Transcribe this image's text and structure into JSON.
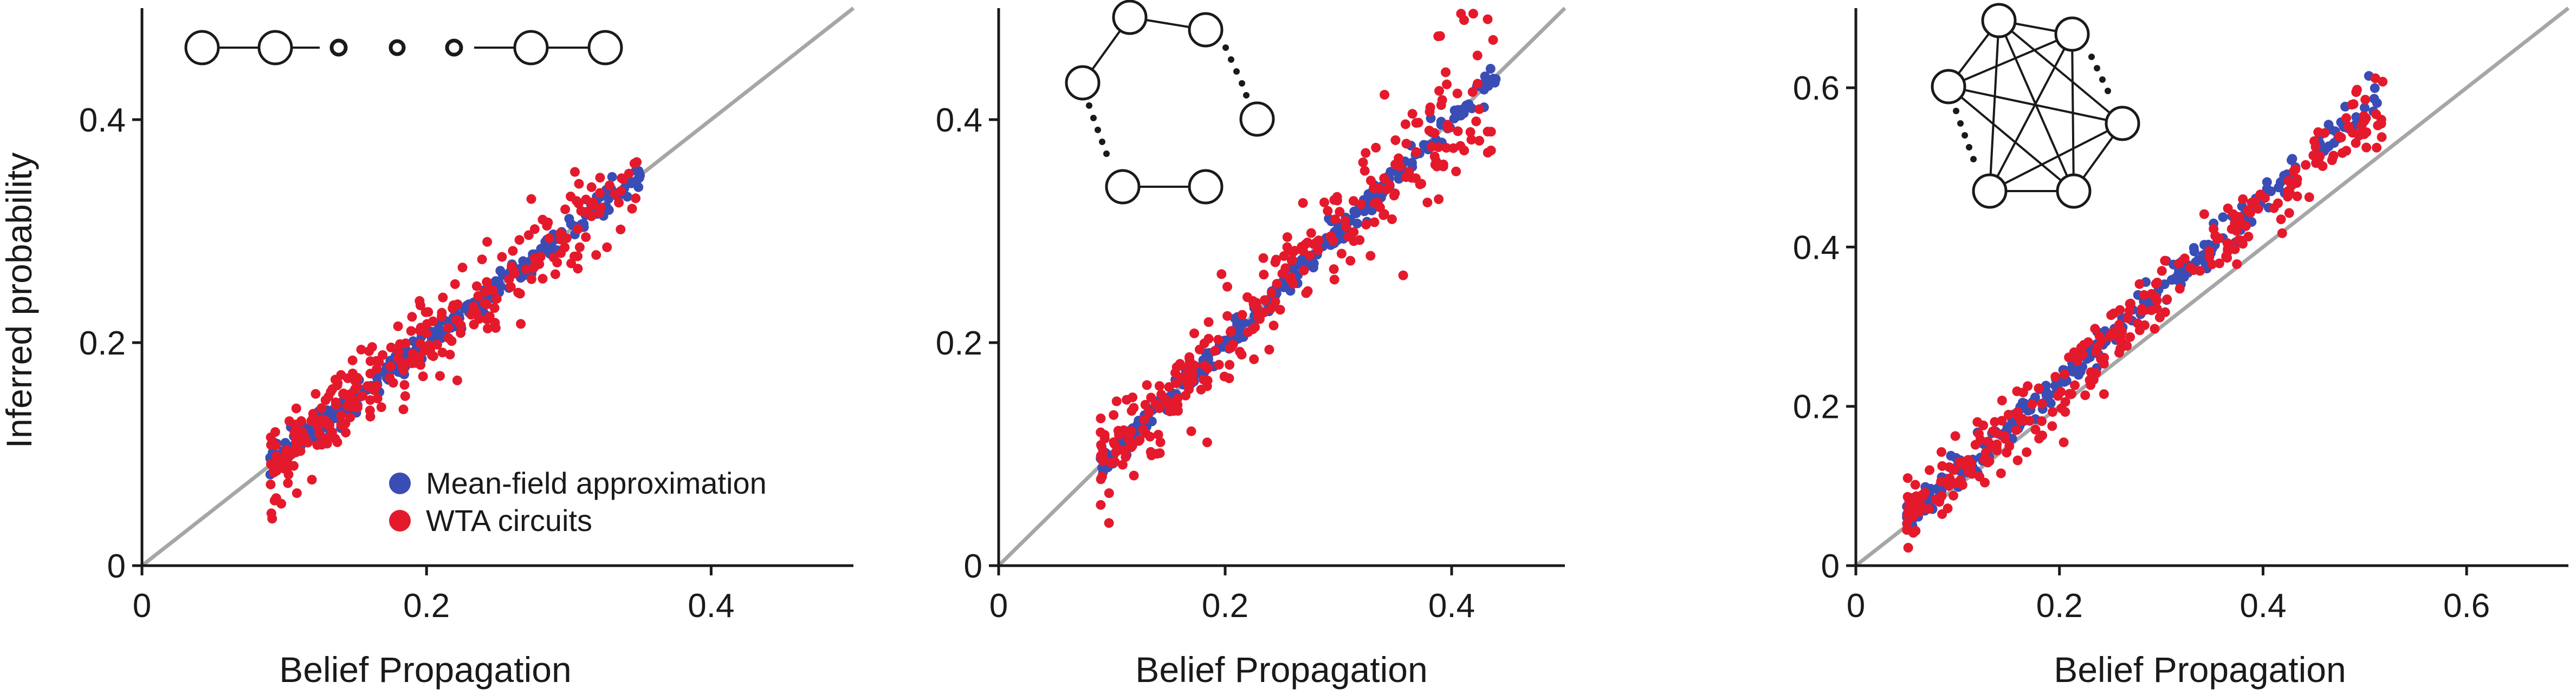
{
  "legend": [
    {
      "label": "Mean-field approximation",
      "color": "#3a4db5"
    },
    {
      "label": "WTA circuits",
      "color": "#e41a2c"
    }
  ],
  "identity_line_color": "#a6a6a6",
  "chart_data": [
    {
      "type": "scatter",
      "title": "",
      "xlabel": "Belief Propagation",
      "ylabel": "Inferred probability",
      "xlim": [
        0,
        0.5
      ],
      "ylim": [
        0,
        0.5
      ],
      "xticks": [
        0,
        0.2,
        0.4
      ],
      "yticks": [
        0,
        0.2,
        0.4
      ],
      "xtick_labels": [
        "0",
        "0.2",
        "0.4"
      ],
      "ytick_labels": [
        "0",
        "0.2",
        "0.4"
      ],
      "grid": false,
      "legend_position": "bottom-right",
      "inset_graph": "chain",
      "point_count_per_series": 280,
      "series": [
        {
          "name": "Mean-field approximation",
          "color": "#3a4db5",
          "x_range": [
            0.09,
            0.35
          ],
          "slope": 1.0,
          "spread": 0.006
        },
        {
          "name": "WTA circuits",
          "color": "#e41a2c",
          "x_range": [
            0.09,
            0.35
          ],
          "slope": 1.0,
          "spread": 0.02
        }
      ]
    },
    {
      "type": "scatter",
      "title": "",
      "xlabel": "Belief Propagation",
      "ylabel": "",
      "xlim": [
        0,
        0.5
      ],
      "ylim": [
        0,
        0.5
      ],
      "xticks": [
        0,
        0.2,
        0.4
      ],
      "yticks": [
        0,
        0.2,
        0.4
      ],
      "xtick_labels": [
        "0",
        "0.2",
        "0.4"
      ],
      "ytick_labels": [
        "0",
        "0.2",
        "0.4"
      ],
      "grid": false,
      "inset_graph": "ring",
      "point_count_per_series": 280,
      "series": [
        {
          "name": "Mean-field approximation",
          "color": "#3a4db5",
          "x_range": [
            0.09,
            0.44
          ],
          "slope": 1.0,
          "spread": 0.006
        },
        {
          "name": "WTA circuits",
          "color": "#e41a2c",
          "x_range": [
            0.09,
            0.44
          ],
          "slope": 1.0,
          "spread": 0.022
        }
      ]
    },
    {
      "type": "scatter",
      "title": "",
      "xlabel": "Belief Propagation",
      "ylabel": "",
      "xlim": [
        0,
        0.7
      ],
      "ylim": [
        0,
        0.7
      ],
      "xticks": [
        0,
        0.2,
        0.4,
        0.6
      ],
      "yticks": [
        0,
        0.2,
        0.4,
        0.6
      ],
      "xtick_labels": [
        "0",
        "0.2",
        "0.4",
        "0.6"
      ],
      "ytick_labels": [
        "0",
        "0.2",
        "0.4",
        "0.6"
      ],
      "grid": false,
      "inset_graph": "complete",
      "point_count_per_series": 280,
      "series": [
        {
          "name": "Mean-field approximation",
          "color": "#3a4db5",
          "x_range": [
            0.05,
            0.52
          ],
          "slope": 1.15,
          "spread": 0.01
        },
        {
          "name": "WTA circuits",
          "color": "#e41a2c",
          "x_range": [
            0.05,
            0.52
          ],
          "slope": 1.12,
          "spread": 0.022
        }
      ]
    }
  ]
}
